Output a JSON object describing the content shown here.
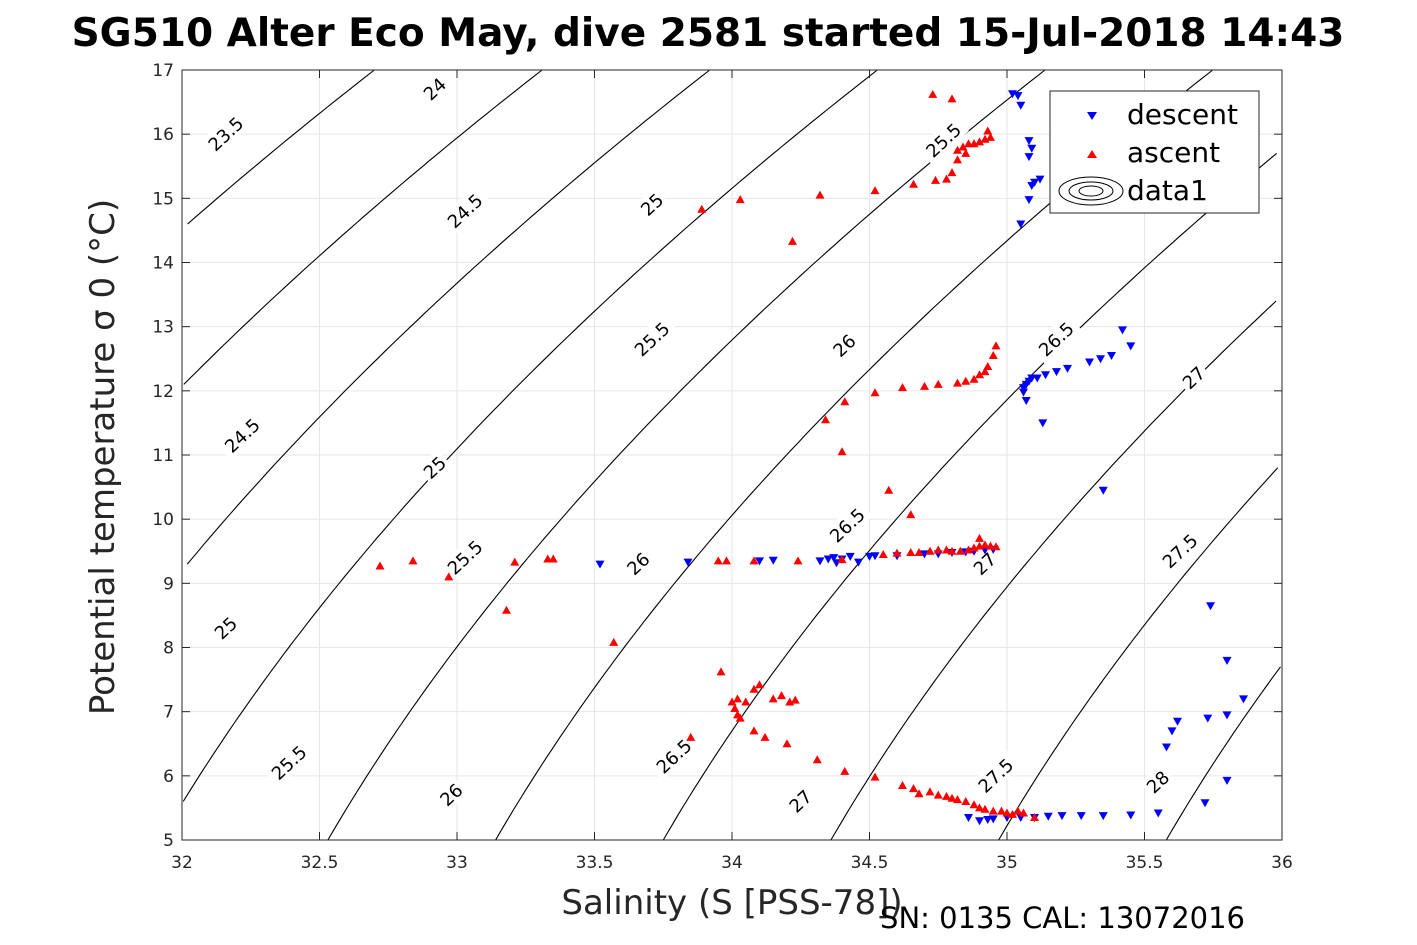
{
  "chart_data": {
    "type": "scatter",
    "title": "SG510 Alter Eco May, dive 2581 started 15-Jul-2018 14:43",
    "xlabel": "Salinity (S [PSS-78])",
    "ylabel": "Potential temperature σ 0 (°C)",
    "xlim": [
      32,
      36
    ],
    "ylim": [
      5,
      17
    ],
    "xticks": [
      32,
      32.5,
      33,
      33.5,
      34,
      34.5,
      35,
      35.5,
      36
    ],
    "xtick_labels": [
      "32",
      "32.5",
      "33",
      "33.5",
      "34",
      "34.5",
      "35",
      "35.5",
      "36"
    ],
    "yticks": [
      5,
      6,
      7,
      8,
      9,
      10,
      11,
      12,
      13,
      14,
      15,
      16,
      17
    ],
    "ytick_labels": [
      "5",
      "6",
      "7",
      "8",
      "9",
      "10",
      "11",
      "12",
      "13",
      "14",
      "15",
      "16",
      "17"
    ],
    "grid": true,
    "legend_placement": "top-right",
    "footer": "SN: 0135  CAL: 13072016",
    "contours": {
      "levels": [
        23.5,
        24,
        24.5,
        25,
        25.5,
        26,
        26.5,
        27,
        27.5,
        28
      ],
      "labels": [
        {
          "text": "23.5",
          "s": 32.16,
          "t": 16.0
        },
        {
          "text": "24",
          "s": 32.92,
          "t": 16.7
        },
        {
          "text": "24.5",
          "s": 32.22,
          "t": 11.3
        },
        {
          "text": "24.5",
          "s": 33.03,
          "t": 14.8
        },
        {
          "text": "25",
          "s": 32.16,
          "t": 8.3
        },
        {
          "text": "25",
          "s": 32.92,
          "t": 10.8
        },
        {
          "text": "25",
          "s": 33.71,
          "t": 14.9
        },
        {
          "text": "25.5",
          "s": 32.39,
          "t": 6.2
        },
        {
          "text": "25.5",
          "s": 33.03,
          "t": 9.4
        },
        {
          "text": "25.5",
          "s": 33.71,
          "t": 12.8
        },
        {
          "text": "25.5",
          "s": 34.77,
          "t": 15.9
        },
        {
          "text": "26",
          "s": 32.98,
          "t": 5.7
        },
        {
          "text": "26",
          "s": 33.66,
          "t": 9.3
        },
        {
          "text": "26",
          "s": 34.41,
          "t": 12.7
        },
        {
          "text": "26.5",
          "s": 33.79,
          "t": 6.3
        },
        {
          "text": "26.5",
          "s": 34.42,
          "t": 9.9
        },
        {
          "text": "26.5",
          "s": 35.18,
          "t": 12.8
        },
        {
          "text": "27",
          "s": 34.25,
          "t": 5.6
        },
        {
          "text": "27",
          "s": 34.92,
          "t": 9.3
        },
        {
          "text": "27",
          "s": 35.68,
          "t": 12.2
        },
        {
          "text": "27.5",
          "s": 34.96,
          "t": 6.0
        },
        {
          "text": "27.5",
          "s": 35.63,
          "t": 9.5
        },
        {
          "text": "28",
          "s": 35.55,
          "t": 5.9
        }
      ]
    },
    "series": [
      {
        "name": "descent",
        "color": "#0000ff",
        "marker": "triangle-down",
        "points": [
          [
            35.02,
            16.63
          ],
          [
            35.04,
            16.6
          ],
          [
            35.05,
            16.45
          ],
          [
            35.08,
            15.9
          ],
          [
            35.09,
            15.78
          ],
          [
            35.08,
            15.65
          ],
          [
            35.09,
            15.2
          ],
          [
            35.1,
            15.25
          ],
          [
            35.12,
            15.3
          ],
          [
            35.08,
            14.98
          ],
          [
            35.05,
            14.6
          ],
          [
            35.06,
            12.05
          ],
          [
            35.07,
            12.1
          ],
          [
            35.08,
            12.15
          ],
          [
            35.09,
            12.2
          ],
          [
            35.11,
            12.2
          ],
          [
            35.14,
            12.25
          ],
          [
            35.18,
            12.3
          ],
          [
            35.22,
            12.35
          ],
          [
            35.3,
            12.45
          ],
          [
            35.34,
            12.5
          ],
          [
            35.38,
            12.55
          ],
          [
            35.42,
            12.95
          ],
          [
            35.45,
            12.7
          ],
          [
            35.06,
            11.98
          ],
          [
            35.07,
            11.85
          ],
          [
            35.13,
            11.5
          ],
          [
            35.35,
            10.45
          ],
          [
            33.52,
            9.3
          ],
          [
            33.84,
            9.33
          ],
          [
            34.1,
            9.35
          ],
          [
            34.15,
            9.36
          ],
          [
            34.32,
            9.35
          ],
          [
            34.35,
            9.38
          ],
          [
            34.37,
            9.4
          ],
          [
            34.4,
            9.38
          ],
          [
            34.43,
            9.42
          ],
          [
            34.5,
            9.42
          ],
          [
            34.52,
            9.43
          ],
          [
            34.6,
            9.43
          ],
          [
            34.7,
            9.46
          ],
          [
            34.75,
            9.46
          ],
          [
            34.8,
            9.48
          ],
          [
            34.85,
            9.49
          ],
          [
            34.88,
            9.5
          ],
          [
            34.92,
            9.52
          ],
          [
            34.95,
            9.53
          ],
          [
            34.38,
            9.32
          ],
          [
            34.46,
            9.33
          ],
          [
            34.86,
            5.35
          ],
          [
            34.9,
            5.3
          ],
          [
            34.93,
            5.32
          ],
          [
            34.95,
            5.33
          ],
          [
            35.0,
            5.35
          ],
          [
            35.05,
            5.35
          ],
          [
            35.1,
            5.35
          ],
          [
            35.15,
            5.37
          ],
          [
            35.2,
            5.38
          ],
          [
            35.27,
            5.38
          ],
          [
            35.35,
            5.38
          ],
          [
            35.45,
            5.39
          ],
          [
            35.55,
            5.42
          ],
          [
            35.58,
            6.45
          ],
          [
            35.6,
            6.7
          ],
          [
            35.62,
            6.85
          ],
          [
            35.72,
            5.58
          ],
          [
            35.73,
            6.9
          ],
          [
            35.74,
            8.65
          ],
          [
            35.8,
            7.8
          ],
          [
            35.8,
            6.95
          ],
          [
            35.8,
            5.93
          ],
          [
            35.86,
            7.2
          ]
        ]
      },
      {
        "name": "ascent",
        "color": "#ff0000",
        "marker": "triangle-up",
        "points": [
          [
            34.73,
            16.62
          ],
          [
            34.8,
            16.55
          ],
          [
            34.82,
            15.75
          ],
          [
            34.84,
            15.8
          ],
          [
            34.86,
            15.85
          ],
          [
            34.88,
            15.85
          ],
          [
            34.9,
            15.88
          ],
          [
            34.92,
            15.92
          ],
          [
            34.93,
            16.05
          ],
          [
            34.94,
            15.95
          ],
          [
            34.85,
            15.7
          ],
          [
            34.82,
            15.6
          ],
          [
            34.8,
            15.4
          ],
          [
            34.78,
            15.3
          ],
          [
            34.74,
            15.28
          ],
          [
            34.66,
            15.22
          ],
          [
            34.52,
            15.12
          ],
          [
            34.32,
            15.05
          ],
          [
            34.03,
            14.98
          ],
          [
            33.89,
            14.83
          ],
          [
            34.22,
            14.33
          ],
          [
            34.62,
            12.05
          ],
          [
            34.7,
            12.07
          ],
          [
            34.75,
            12.1
          ],
          [
            34.82,
            12.12
          ],
          [
            34.85,
            12.15
          ],
          [
            34.88,
            12.18
          ],
          [
            34.9,
            12.25
          ],
          [
            34.92,
            12.3
          ],
          [
            34.93,
            12.38
          ],
          [
            34.95,
            12.55
          ],
          [
            34.96,
            12.7
          ],
          [
            34.52,
            11.97
          ],
          [
            34.41,
            11.83
          ],
          [
            34.34,
            11.55
          ],
          [
            34.4,
            11.05
          ],
          [
            34.57,
            10.45
          ],
          [
            34.65,
            10.07
          ],
          [
            32.72,
            9.27
          ],
          [
            32.84,
            9.35
          ],
          [
            32.97,
            9.1
          ],
          [
            33.21,
            9.33
          ],
          [
            33.33,
            9.38
          ],
          [
            33.35,
            9.38
          ],
          [
            33.18,
            8.58
          ],
          [
            33.57,
            8.08
          ],
          [
            33.95,
            9.35
          ],
          [
            33.98,
            9.35
          ],
          [
            34.08,
            9.35
          ],
          [
            34.24,
            9.35
          ],
          [
            34.4,
            9.37
          ],
          [
            34.55,
            9.45
          ],
          [
            34.6,
            9.47
          ],
          [
            34.65,
            9.48
          ],
          [
            34.68,
            9.48
          ],
          [
            34.72,
            9.5
          ],
          [
            34.75,
            9.52
          ],
          [
            34.78,
            9.52
          ],
          [
            34.8,
            9.5
          ],
          [
            34.83,
            9.5
          ],
          [
            34.86,
            9.52
          ],
          [
            34.88,
            9.55
          ],
          [
            34.9,
            9.58
          ],
          [
            34.92,
            9.6
          ],
          [
            34.94,
            9.58
          ],
          [
            34.96,
            9.57
          ],
          [
            34.9,
            9.7
          ],
          [
            33.96,
            7.62
          ],
          [
            34.0,
            7.15
          ],
          [
            34.01,
            7.05
          ],
          [
            34.02,
            6.95
          ],
          [
            34.03,
            6.9
          ],
          [
            34.02,
            7.2
          ],
          [
            34.05,
            7.15
          ],
          [
            34.08,
            7.35
          ],
          [
            34.1,
            7.42
          ],
          [
            34.15,
            7.2
          ],
          [
            34.18,
            7.25
          ],
          [
            34.21,
            7.15
          ],
          [
            34.23,
            7.18
          ],
          [
            34.08,
            6.7
          ],
          [
            34.12,
            6.6
          ],
          [
            34.2,
            6.5
          ],
          [
            34.31,
            6.25
          ],
          [
            34.41,
            6.07
          ],
          [
            34.52,
            5.98
          ],
          [
            34.62,
            5.85
          ],
          [
            34.66,
            5.8
          ],
          [
            34.68,
            5.72
          ],
          [
            34.72,
            5.75
          ],
          [
            34.75,
            5.7
          ],
          [
            34.78,
            5.68
          ],
          [
            34.8,
            5.65
          ],
          [
            34.82,
            5.63
          ],
          [
            34.85,
            5.6
          ],
          [
            34.88,
            5.55
          ],
          [
            34.9,
            5.5
          ],
          [
            34.92,
            5.48
          ],
          [
            34.95,
            5.45
          ],
          [
            34.98,
            5.45
          ],
          [
            35.0,
            5.42
          ],
          [
            35.02,
            5.4
          ],
          [
            35.04,
            5.45
          ],
          [
            35.06,
            5.42
          ],
          [
            35.1,
            5.35
          ],
          [
            33.85,
            6.6
          ]
        ]
      },
      {
        "name": "data1",
        "color": "#000000",
        "marker": "contour",
        "points": []
      }
    ]
  }
}
